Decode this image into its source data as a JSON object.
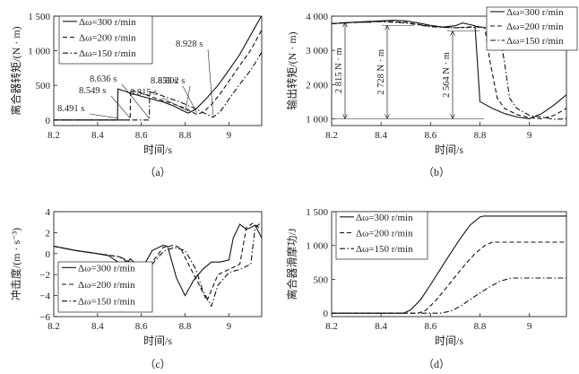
{
  "chart_data": [
    {
      "type": "line",
      "caption": "（a）",
      "xlabel": "时间/s",
      "ylabel": "离合器转矩/(N · m)",
      "xlim": [
        8.2,
        9.15
      ],
      "ylim": [
        -80,
        1500
      ],
      "xticks": [
        "8.2",
        "8.4",
        "8.6",
        "8.8",
        "9"
      ],
      "xtick_values": [
        8.2,
        8.4,
        8.6,
        8.8,
        9.0
      ],
      "yticks": [
        "0",
        "500",
        "1 000",
        "1 500"
      ],
      "ytick_values": [
        0,
        500,
        1000,
        1500
      ],
      "legend": {
        "position": "top-left"
      },
      "series": [
        {
          "name": "Δω=300 r/min",
          "style": "solid",
          "x": [
            8.2,
            8.491,
            8.493,
            8.52,
            8.58,
            8.64,
            8.7,
            8.75,
            8.8,
            8.815,
            8.85,
            8.9,
            8.95,
            9.0,
            9.05,
            9.1,
            9.15
          ],
          "y": [
            0,
            0,
            450,
            420,
            360,
            310,
            260,
            200,
            120,
            100,
            160,
            320,
            500,
            720,
            950,
            1230,
            1510
          ]
        },
        {
          "name": "Δω=200 r/min",
          "style": "dash",
          "x": [
            8.2,
            8.549,
            8.551,
            8.6,
            8.65,
            8.7,
            8.75,
            8.8,
            8.853,
            8.88,
            8.92,
            8.96,
            9.0,
            9.05,
            9.1,
            9.15
          ],
          "y": [
            0,
            0,
            430,
            390,
            330,
            280,
            230,
            170,
            80,
            110,
            220,
            380,
            560,
            790,
            1010,
            1300
          ]
        },
        {
          "name": "Δω=150 r/min",
          "style": "dashdot",
          "x": [
            8.2,
            8.636,
            8.638,
            8.68,
            8.72,
            8.76,
            8.8,
            8.85,
            8.9,
            8.928,
            8.96,
            9.0,
            9.05,
            9.1,
            9.15
          ],
          "y": [
            0,
            0,
            410,
            370,
            320,
            280,
            230,
            160,
            80,
            40,
            120,
            300,
            520,
            720,
            980
          ]
        }
      ],
      "annotations": [
        {
          "text": "8.491 s",
          "x": 8.491,
          "y": 0
        },
        {
          "text": "8.549 s",
          "x": 8.549,
          "y": 0
        },
        {
          "text": "8.636 s",
          "x": 8.636,
          "y": 0
        },
        {
          "text": "8.802 s",
          "x": 8.802,
          "y": 120
        },
        {
          "text": "8.815 s",
          "x": 8.815,
          "y": 100
        },
        {
          "text": "8.853 s",
          "x": 8.853,
          "y": 80
        },
        {
          "text": "8.928 s",
          "x": 8.928,
          "y": 40
        }
      ]
    },
    {
      "type": "line",
      "caption": "（b）",
      "xlabel": "时间/s",
      "ylabel": "输出转矩/(N · m)",
      "xlim": [
        8.2,
        9.15
      ],
      "ylim": [
        800,
        4000
      ],
      "xticks": [
        "8.2",
        "8.4",
        "8.6",
        "8.8",
        "9"
      ],
      "xtick_values": [
        8.2,
        8.4,
        8.6,
        8.8,
        9.0
      ],
      "yticks": [
        "1 000",
        "2 000",
        "3 000",
        "4 000"
      ],
      "ytick_values": [
        1000,
        2000,
        3000,
        4000
      ],
      "legend": {
        "position": "top-right"
      },
      "series": [
        {
          "name": "Δω=300 r/min",
          "style": "solid",
          "x": [
            8.2,
            8.3,
            8.4,
            8.45,
            8.5,
            8.55,
            8.6,
            8.65,
            8.7,
            8.73,
            8.76,
            8.78,
            8.8,
            8.85,
            8.9,
            8.95,
            9.0,
            9.05,
            9.1,
            9.15
          ],
          "y": [
            3780,
            3830,
            3860,
            3880,
            3860,
            3800,
            3730,
            3680,
            3720,
            3800,
            3750,
            3720,
            1500,
            1300,
            1150,
            1050,
            1000,
            1150,
            1400,
            1700
          ]
        },
        {
          "name": "Δω=200 r/min",
          "style": "dash",
          "x": [
            8.2,
            8.3,
            8.4,
            8.5,
            8.6,
            8.7,
            8.8,
            8.82,
            8.84,
            8.87,
            8.9,
            8.95,
            9.0,
            9.05,
            9.1,
            9.15
          ],
          "y": [
            3780,
            3820,
            3850,
            3820,
            3700,
            3660,
            3700,
            3650,
            2700,
            1600,
            1300,
            1120,
            1030,
            1000,
            1100,
            1300
          ]
        },
        {
          "name": "Δω=150 r/min",
          "style": "dashdot",
          "x": [
            8.2,
            8.3,
            8.4,
            8.5,
            8.6,
            8.7,
            8.8,
            8.85,
            8.88,
            8.9,
            8.92,
            8.95,
            9.0,
            9.05,
            9.1,
            9.15
          ],
          "y": [
            3780,
            3820,
            3840,
            3800,
            3690,
            3660,
            3680,
            3660,
            3500,
            2600,
            1600,
            1300,
            1100,
            1050,
            980,
            1000
          ]
        }
      ],
      "annotations": [
        {
          "text": "2 815 N · m",
          "x": 8.28
        },
        {
          "text": "2 728 N · m",
          "x": 8.49
        },
        {
          "text": "2 564 N · m",
          "x": 8.73
        }
      ]
    },
    {
      "type": "line",
      "caption": "（c）",
      "xlabel": "时间/s",
      "ylabel": "冲击度/(m · s⁻³)",
      "xlim": [
        8.2,
        9.15
      ],
      "ylim": [
        -6,
        4
      ],
      "xticks": [
        "8.2",
        "8.4",
        "8.6",
        "8.8",
        "9"
      ],
      "xtick_values": [
        8.2,
        8.4,
        8.6,
        8.8,
        9.0
      ],
      "yticks": [
        "4",
        "2",
        "0",
        "−2",
        "−4",
        "−6"
      ],
      "ytick_values": [
        4,
        2,
        0,
        -2,
        -4,
        -6
      ],
      "legend": {
        "position": "bottom-left"
      },
      "series": [
        {
          "name": "Δω=300 r/min",
          "style": "solid",
          "x": [
            8.2,
            8.3,
            8.4,
            8.45,
            8.5,
            8.52,
            8.55,
            8.6,
            8.65,
            8.7,
            8.72,
            8.76,
            8.8,
            8.84,
            8.88,
            8.92,
            8.96,
            9.0,
            9.02,
            9.05,
            9.08,
            9.12,
            9.15
          ],
          "y": [
            0.7,
            0.3,
            0.0,
            -0.2,
            -0.9,
            -1.3,
            -0.5,
            -1.5,
            0.3,
            0.8,
            0.7,
            -2.3,
            -4.0,
            -2.5,
            -1.5,
            -0.8,
            -0.8,
            -0.6,
            1.5,
            2.8,
            2.3,
            2.7,
            1.5
          ]
        },
        {
          "name": "Δω=200 r/min",
          "style": "dash",
          "x": [
            8.2,
            8.3,
            8.4,
            8.5,
            8.55,
            8.6,
            8.63,
            8.65,
            8.7,
            8.75,
            8.78,
            8.82,
            8.86,
            8.9,
            8.95,
            9.0,
            9.05,
            9.08,
            9.11,
            9.15
          ],
          "y": [
            0.7,
            0.3,
            0.0,
            -0.3,
            -1.0,
            -1.5,
            -1.2,
            -0.8,
            0.6,
            0.8,
            0.5,
            -1.2,
            -2.8,
            -4.5,
            -2.0,
            -1.5,
            -1.0,
            2.5,
            2.9,
            2.3
          ]
        },
        {
          "name": "Δω=150 r/min",
          "style": "dashdot",
          "x": [
            8.2,
            8.3,
            8.4,
            8.5,
            8.55,
            8.6,
            8.65,
            8.7,
            8.75,
            8.8,
            8.85,
            8.88,
            8.92,
            8.95,
            9.0,
            9.05,
            9.1,
            9.12,
            9.15
          ],
          "y": [
            0.7,
            0.3,
            0.0,
            -0.3,
            -0.8,
            -1.2,
            -1.0,
            0.2,
            0.6,
            0.3,
            -1.5,
            -3.5,
            -5.0,
            -3.0,
            -1.8,
            -1.5,
            -1.0,
            2.5,
            3.0
          ]
        }
      ]
    },
    {
      "type": "line",
      "caption": "（d）",
      "xlabel": "时间/s",
      "ylabel": "离合器滑摩功/J",
      "xlim": [
        8.2,
        9.15
      ],
      "ylim": [
        -50,
        1500
      ],
      "xticks": [
        "8.2",
        "8.4",
        "8.6",
        "8.8",
        "9"
      ],
      "xtick_values": [
        8.2,
        8.4,
        8.6,
        8.8,
        9.0
      ],
      "yticks": [
        "0",
        "500",
        "1 000",
        "1 500"
      ],
      "ytick_values": [
        0,
        500,
        1000,
        1500
      ],
      "legend": {
        "position": "top-left"
      },
      "series": [
        {
          "name": "Δω=300 r/min",
          "style": "solid",
          "x": [
            8.2,
            8.49,
            8.52,
            8.56,
            8.6,
            8.64,
            8.68,
            8.72,
            8.76,
            8.8,
            8.815,
            9.15
          ],
          "y": [
            0,
            0,
            50,
            200,
            420,
            650,
            880,
            1100,
            1300,
            1420,
            1435,
            1435
          ]
        },
        {
          "name": "Δω=200 r/min",
          "style": "dash",
          "x": [
            8.2,
            8.55,
            8.58,
            8.62,
            8.66,
            8.7,
            8.74,
            8.78,
            8.82,
            8.85,
            9.15
          ],
          "y": [
            0,
            0,
            40,
            180,
            360,
            540,
            720,
            880,
            1000,
            1050,
            1050
          ]
        },
        {
          "name": "Δω=150 r/min",
          "style": "dashdot",
          "x": [
            8.2,
            8.64,
            8.68,
            8.72,
            8.76,
            8.8,
            8.84,
            8.88,
            8.92,
            8.93,
            9.15
          ],
          "y": [
            0,
            0,
            30,
            100,
            200,
            300,
            390,
            470,
            515,
            520,
            520
          ]
        }
      ]
    }
  ]
}
